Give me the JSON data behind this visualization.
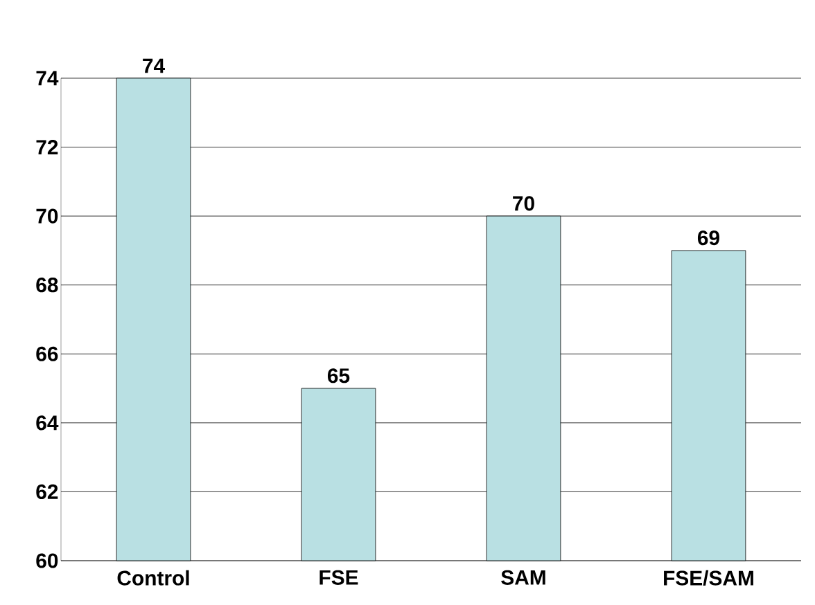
{
  "chart_data": {
    "type": "bar",
    "categories": [
      "Control",
      "FSE",
      "SAM",
      "FSE/SAM"
    ],
    "values": [
      74,
      65,
      70,
      69
    ],
    "color": "#b9e0e3",
    "ylim": [
      60,
      74
    ],
    "yticks": [
      60,
      62,
      64,
      66,
      68,
      70,
      72,
      74
    ],
    "grid": "y",
    "data_labels": true
  }
}
